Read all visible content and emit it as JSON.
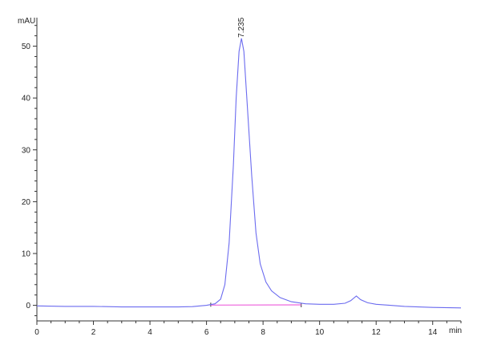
{
  "chart_data": {
    "type": "line",
    "title": "",
    "xlabel": "min",
    "ylabel": "mAU",
    "xlim": [
      0,
      15
    ],
    "ylim": [
      -3,
      55.5
    ],
    "x_ticks": [
      0,
      2,
      4,
      6,
      8,
      10,
      12,
      14
    ],
    "y_ticks": [
      0,
      10,
      20,
      30,
      40,
      50
    ],
    "grid": false,
    "series": [
      {
        "color": "#6b6bef",
        "points": [
          [
            0,
            -0.1
          ],
          [
            1,
            -0.2
          ],
          [
            2,
            -0.2
          ],
          [
            3,
            -0.3
          ],
          [
            4,
            -0.3
          ],
          [
            5,
            -0.3
          ],
          [
            5.5,
            -0.25
          ],
          [
            6,
            0
          ],
          [
            6.3,
            0.3
          ],
          [
            6.5,
            1.2
          ],
          [
            6.65,
            4
          ],
          [
            6.8,
            12
          ],
          [
            6.95,
            27
          ],
          [
            7.05,
            40
          ],
          [
            7.15,
            49
          ],
          [
            7.235,
            51.5
          ],
          [
            7.32,
            49
          ],
          [
            7.45,
            38
          ],
          [
            7.6,
            25
          ],
          [
            7.75,
            14
          ],
          [
            7.9,
            8
          ],
          [
            8.1,
            4.5
          ],
          [
            8.3,
            2.8
          ],
          [
            8.6,
            1.5
          ],
          [
            9,
            0.7
          ],
          [
            9.5,
            0.3
          ],
          [
            10,
            0.2
          ],
          [
            10.5,
            0.2
          ],
          [
            10.9,
            0.4
          ],
          [
            11.1,
            0.9
          ],
          [
            11.3,
            1.8
          ],
          [
            11.45,
            1.1
          ],
          [
            11.7,
            0.5
          ],
          [
            12,
            0.2
          ],
          [
            12.5,
            0
          ],
          [
            13,
            -0.2
          ],
          [
            14,
            -0.4
          ],
          [
            15,
            -0.5
          ]
        ]
      }
    ],
    "baseline": {
      "color": "#ee66dd",
      "x": [
        6.15,
        9.35
      ],
      "y": [
        0.05,
        0.1
      ]
    },
    "peak_labels": [
      {
        "x": 7.235,
        "y": 51.5,
        "text": "7.235"
      }
    ]
  }
}
